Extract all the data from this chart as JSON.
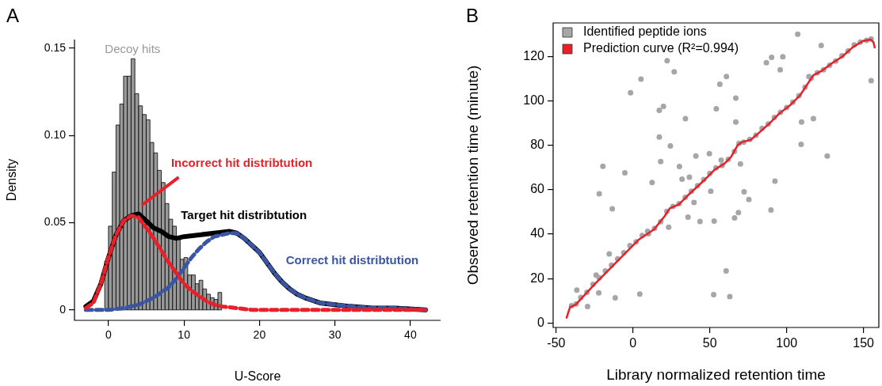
{
  "chart_data": [
    {
      "type": "histogram",
      "title": "A",
      "xlabel": "U-Score",
      "ylabel": "Density",
      "xlim": [
        -4.5,
        44
      ],
      "ylim": [
        -0.006,
        0.155
      ],
      "xticks": [
        0,
        10,
        20,
        30,
        40
      ],
      "yticks": [
        0,
        0.05,
        {
          "value": 0.1,
          "label": "0.10"
        },
        0.15
      ],
      "grid": false,
      "series": [
        {
          "name": "Decoy hits",
          "color": "#999999",
          "bins": [
            -0.5,
            0,
            0.5,
            1,
            1.5,
            2,
            2.5,
            3,
            3.5,
            4,
            4.5,
            5,
            5.5,
            6,
            6.5,
            7,
            7.5,
            8,
            8.5,
            9,
            9.5,
            10,
            10.5,
            11,
            11.5,
            12,
            12.5,
            13,
            13.5,
            14,
            14.5,
            15
          ],
          "values": [
            0.028,
            0.048,
            0.079,
            0.106,
            0.118,
            0.134,
            0.134,
            0.144,
            0.124,
            0.117,
            0.112,
            0.109,
            0.096,
            0.09,
            0.08,
            0.073,
            0.061,
            0.052,
            0.048,
            0.042,
            0.029,
            0.03,
            0.02,
            0.02,
            0.015,
            0.017,
            0.012,
            0.009,
            0.007,
            0.006,
            0.01
          ]
        },
        {
          "type": "line",
          "name": "Target hit distribtution",
          "color": "#000000",
          "line_style": "solid",
          "x": [
            -3,
            -2,
            -1,
            0,
            1,
            2,
            3,
            4,
            5,
            6,
            7,
            8,
            9,
            10,
            12,
            14,
            16,
            17,
            18,
            19,
            20,
            21,
            22,
            23,
            24,
            25,
            26,
            28,
            30,
            32,
            35,
            38,
            42
          ],
          "values": [
            0.002,
            0.005,
            0.015,
            0.03,
            0.043,
            0.051,
            0.054,
            0.055,
            0.051,
            0.047,
            0.045,
            0.042,
            0.041,
            0.042,
            0.043,
            0.044,
            0.045,
            0.044,
            0.041,
            0.037,
            0.033,
            0.027,
            0.021,
            0.016,
            0.012,
            0.009,
            0.007,
            0.004,
            0.003,
            0.002,
            0.001,
            0.001,
            0
          ]
        },
        {
          "type": "line",
          "name": "Correct hit distribtution",
          "color": "#3a55a4",
          "line_style": "dashed",
          "x": [
            -3,
            -1,
            0,
            2,
            4,
            6,
            8,
            9,
            10,
            11,
            12,
            13,
            14,
            15,
            16,
            17,
            18,
            19,
            20,
            21,
            22,
            23,
            24,
            25,
            26,
            28,
            30,
            32,
            35,
            38,
            42
          ],
          "values": [
            0,
            0,
            0,
            0.001,
            0.003,
            0.007,
            0.013,
            0.018,
            0.024,
            0.03,
            0.035,
            0.039,
            0.042,
            0.043,
            0.044,
            0.044,
            0.041,
            0.037,
            0.033,
            0.027,
            0.021,
            0.016,
            0.012,
            0.009,
            0.007,
            0.004,
            0.003,
            0.002,
            0.001,
            0.001,
            0
          ]
        },
        {
          "type": "line",
          "name": "Incorrect hit distribtution",
          "color": "#e8202a",
          "line_style": "dashed",
          "x": [
            -3,
            -2,
            -1,
            0,
            1,
            2,
            3,
            4,
            5,
            6,
            7,
            8,
            9,
            10,
            11,
            12,
            13,
            14,
            15,
            17,
            19,
            22,
            26,
            30,
            34,
            38,
            42
          ],
          "values": [
            0.001,
            0.004,
            0.015,
            0.03,
            0.043,
            0.051,
            0.054,
            0.053,
            0.047,
            0.041,
            0.034,
            0.027,
            0.021,
            0.015,
            0.011,
            0.008,
            0.005,
            0.003,
            0.002,
            0.001,
            0,
            0,
            0,
            0,
            0,
            0,
            0
          ]
        }
      ]
    },
    {
      "type": "scatter",
      "title": "B",
      "xlabel": "Library normalized retention time",
      "ylabel": "Observed retention time (minute)",
      "xlim": [
        -52,
        160
      ],
      "ylim": [
        -2,
        135
      ],
      "xticks": [
        -50,
        0,
        50,
        100,
        150
      ],
      "yticks": [
        0,
        20,
        40,
        60,
        80,
        100,
        120
      ],
      "grid": false,
      "legend": "top left",
      "series": [
        {
          "name": "Identified peptide ions",
          "color": "#a6a6a6",
          "marker": "circle",
          "x": [
            -40,
            -37,
            -34,
            -30,
            -26,
            -22,
            -18,
            -14,
            -10,
            -6,
            -2,
            2,
            6,
            10,
            14,
            18,
            22,
            26,
            30,
            34,
            38,
            42,
            46,
            50,
            54,
            58,
            62,
            66,
            69,
            72,
            76,
            80,
            84,
            88,
            92,
            96,
            100,
            104,
            108,
            112,
            116,
            120,
            124,
            128,
            132,
            136,
            140,
            144,
            148,
            152,
            155,
            -1.6,
            5.2,
            26.8,
            22.2,
            17.1,
            19.8,
            34.1,
            54.2,
            56.5,
            60.8,
            66.9,
            66.9,
            86.8,
            90.2,
            97.5,
            95.8,
            107.2,
            122.5,
            114.5,
            109.7,
            117.4,
            109.4,
            126.4,
            155,
            92.4,
            72.3,
            75.4,
            68.6,
            66.1,
            89.8,
            52.8,
            50.6,
            49.7,
            57.4,
            69.9,
            40.9,
            36.7,
            31.9,
            30.2,
            24.3,
            17.1,
            18,
            12.4,
            39.7,
            35.8,
            43.6,
            23.2,
            -5.3,
            -19.6,
            -22,
            -13.5,
            -15.5,
            -24,
            -22.3,
            -11.6,
            4.4,
            52.5,
            63,
            60.6,
            -36.6,
            -29.6,
            9.5
          ],
          "values": [
            7.8,
            8.6,
            11.5,
            13.8,
            17.4,
            20.3,
            23.4,
            26,
            28.9,
            31.6,
            34.8,
            36.5,
            39.4,
            40.2,
            42.6,
            45.6,
            50.2,
            52.4,
            53.7,
            56.5,
            59.3,
            61.8,
            64.5,
            67.3,
            69.8,
            70.9,
            73.6,
            77.2,
            80.8,
            81.4,
            82.6,
            84.5,
            87.6,
            89.5,
            92.5,
            94.8,
            96.9,
            99.3,
            102.3,
            106.1,
            110.1,
            112.6,
            113.9,
            116,
            117.8,
            120.2,
            122.4,
            125.1,
            126.4,
            127.2,
            127.8,
            103.6,
            109.7,
            113,
            118,
            95.7,
            97.5,
            91.9,
            96.4,
            107.4,
            110.9,
            101.2,
            90.4,
            117.1,
            119.5,
            119.8,
            113.9,
            129.9,
            124.9,
            110.9,
            90.4,
            91.9,
            80.4,
            75.1,
            109,
            63.8,
            59,
            55.6,
            49.7,
            47.3,
            50.8,
            45.9,
            59.3,
            76.2,
            73.3,
            71.6,
            75.1,
            65.6,
            64.7,
            70.4,
            79.7,
            83.7,
            72.6,
            63.2,
            54.2,
            47.6,
            45.7,
            43.1,
            67.6,
            70.5,
            58.1,
            51.4,
            31.1,
            21.6,
            13.6,
            11.3,
            13,
            12.8,
            11.9,
            23.4,
            14.8,
            7.4,
            41.2
          ]
        },
        {
          "type": "line",
          "name": "Prediction curve (R²=0.994)",
          "color": "#e8202a",
          "line_style": "solid",
          "x": [
            -43.2,
            -42.4,
            -41,
            -37.3,
            -25.4,
            -11.8,
            3.5,
            13.7,
            20.5,
            23.9,
            29.9,
            35.8,
            46,
            52.8,
            59.6,
            63.8,
            68.1,
            70.6,
            76.6,
            81.7,
            88.5,
            95.3,
            102.1,
            108.9,
            117.4,
            122.5,
            129.3,
            136.1,
            142.9,
            149.7,
            154.8,
            156.5,
            157.3
          ],
          "values": [
            2.4,
            4.2,
            7.1,
            8.3,
            17.2,
            26.7,
            37.4,
            42.1,
            48,
            51.6,
            53.4,
            57.5,
            64,
            68.8,
            71.8,
            74.7,
            80,
            81.3,
            82.4,
            85.4,
            89.6,
            94.3,
            97.9,
            102.6,
            111.5,
            113.3,
            116.8,
            119.8,
            124,
            126.9,
            127.5,
            126.3,
            124
          ]
        }
      ]
    }
  ]
}
